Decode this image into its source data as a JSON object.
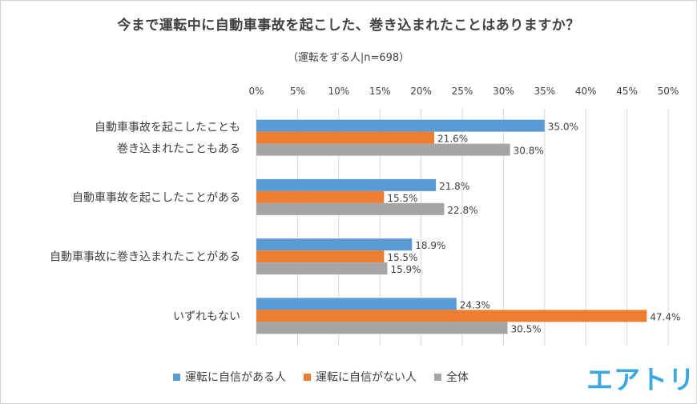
{
  "logo_text": "エアトリ",
  "chart_data": {
    "type": "bar",
    "orientation": "horizontal",
    "title": "今まで運転中に自動車事故を起こした、巻き込まれたことはありますか？",
    "subtitle": "（運転をする人|n=698）",
    "categories": [
      [
        "自動車事故を起こしたことも",
        "巻き込まれたこともある"
      ],
      [
        "自動車事故を起こしたことがある"
      ],
      [
        "自動車事故に巻き込まれたことがある"
      ],
      [
        "いずれもない"
      ]
    ],
    "series": [
      {
        "name": "運転に自信がある人",
        "color": "#5b9bd5",
        "values": [
          35.0,
          21.8,
          18.9,
          24.3
        ],
        "labels": [
          "35.0%",
          "21.8%",
          "18.9%",
          "24.3%"
        ]
      },
      {
        "name": "運転に自信がない人",
        "color": "#ed7d31",
        "values": [
          21.6,
          15.5,
          15.5,
          47.4
        ],
        "labels": [
          "21.6%",
          "15.5%",
          "15.5%",
          "47.4%"
        ]
      },
      {
        "name": "全体",
        "color": "#a5a5a5",
        "values": [
          30.8,
          22.8,
          15.9,
          30.5
        ],
        "labels": [
          "30.8%",
          "22.8%",
          "15.9%",
          "30.5%"
        ]
      }
    ],
    "x_ticks": [
      "0%",
      "5%",
      "10%",
      "15%",
      "20%",
      "25%",
      "30%",
      "35%",
      "40%",
      "45%",
      "50%"
    ],
    "xlim": [
      0,
      50
    ],
    "grid": true,
    "legend_position": "bottom"
  }
}
